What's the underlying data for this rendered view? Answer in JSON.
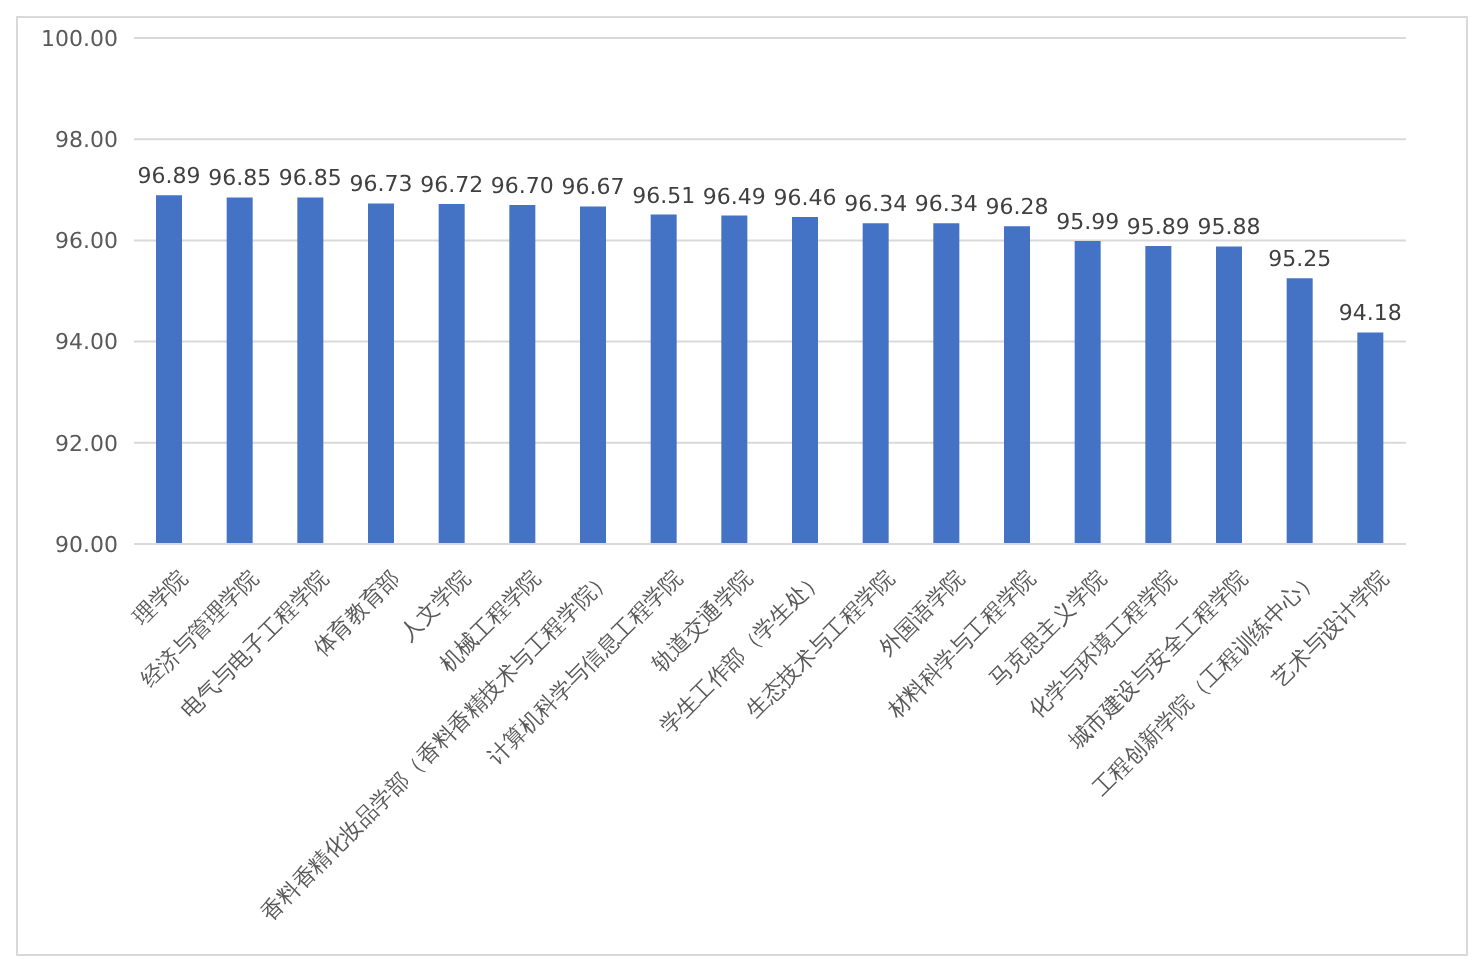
{
  "chart_data": {
    "type": "bar",
    "categories": [
      "理学院",
      "经济与管理学院",
      "电气与电子工程学院",
      "体育教育部",
      "人文学院",
      "机械工程学院",
      "香料香精化妆品学部（香料香精技术与工程学院）",
      "计算机科学与信息工程学院",
      "轨道交通学院",
      "学生工作部（学生处）",
      "生态技术与工程学院",
      "外国语学院",
      "材料科学与工程学院",
      "马克思主义学院",
      "化学与环境工程学院",
      "城市建设与安全工程学院",
      "工程创新学院（工程训练中心）",
      "艺术与设计学院"
    ],
    "values": [
      96.89,
      96.85,
      96.85,
      96.73,
      96.72,
      96.7,
      96.67,
      96.51,
      96.49,
      96.46,
      96.34,
      96.34,
      96.28,
      95.99,
      95.89,
      95.88,
      95.25,
      94.18
    ],
    "color": "#4472c4",
    "ylim": [
      90,
      100
    ],
    "yticks": [
      {
        "value": 90,
        "label": "90.00"
      },
      {
        "value": 92,
        "label": "92.00"
      },
      {
        "value": 94,
        "label": "94.00"
      },
      {
        "value": 96,
        "label": "96.00"
      },
      {
        "value": 98,
        "label": "98.00"
      },
      {
        "value": 100,
        "label": "100.00"
      }
    ],
    "value_labels": [
      "96.89",
      "96.85",
      "96.85",
      "96.73",
      "96.72",
      "96.70",
      "96.67",
      "96.51",
      "96.49",
      "96.46",
      "96.34",
      "96.34",
      "96.28",
      "95.99",
      "95.89",
      "95.88",
      "95.25",
      "94.18"
    ],
    "grid": "y",
    "legend": false
  }
}
